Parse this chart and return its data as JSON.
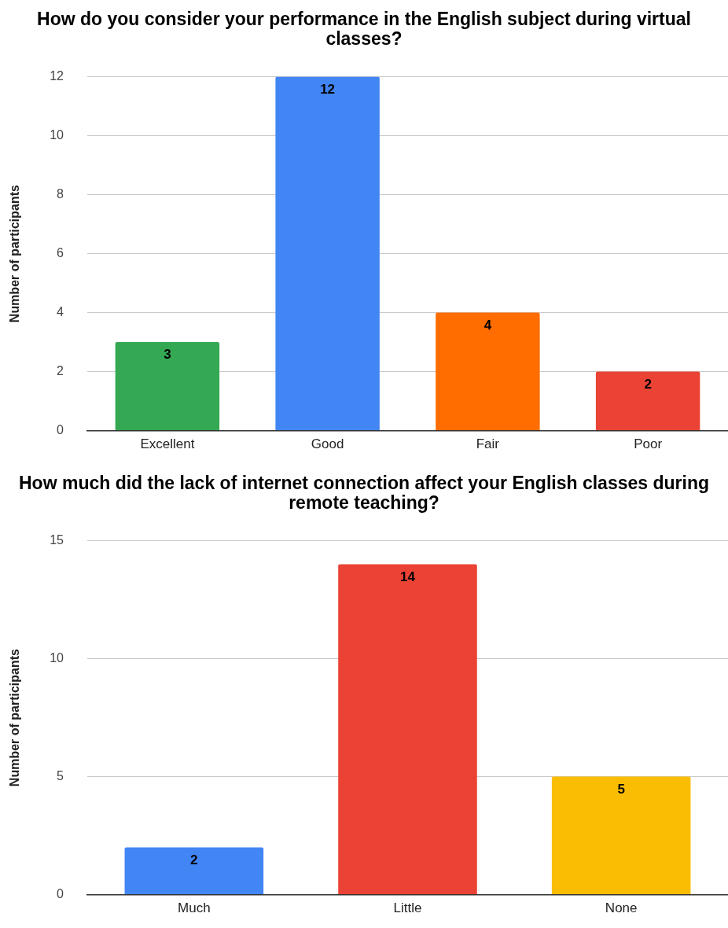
{
  "chart_data": [
    {
      "type": "bar",
      "title": "How do you consider your performance in the English subject during virtual classes?",
      "ylabel": "Number of participants",
      "categories": [
        "Excellent",
        "Good",
        "Fair",
        "Poor"
      ],
      "values": [
        3,
        12,
        4,
        2
      ],
      "colors": [
        "#34a853",
        "#4285f4",
        "#ff6d01",
        "#ea4335"
      ],
      "ylim": [
        0,
        12
      ],
      "yticks": [
        0,
        2,
        4,
        6,
        8,
        10,
        12
      ],
      "grid": "y",
      "data_labels": true
    },
    {
      "type": "bar",
      "title": "How much did the lack of internet connection affect your English classes during remote teaching?",
      "ylabel": "Number of participants",
      "categories": [
        "Much",
        "Little",
        "None"
      ],
      "values": [
        2,
        14,
        5
      ],
      "colors": [
        "#4285f4",
        "#ea4335",
        "#fbbc04"
      ],
      "ylim": [
        0,
        15
      ],
      "yticks": [
        0,
        5,
        10,
        15
      ],
      "grid": "y",
      "data_labels": true
    }
  ]
}
